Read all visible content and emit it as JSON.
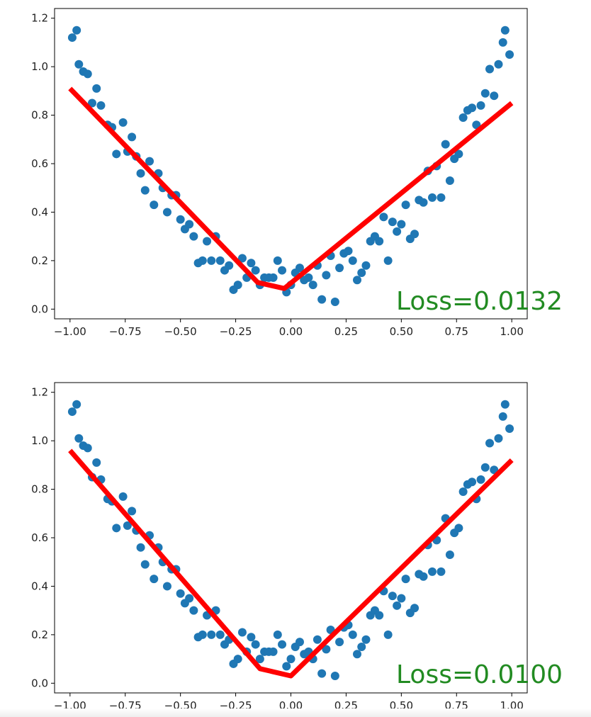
{
  "colors": {
    "points": "#1f77b4",
    "fit_line": "#ff0000",
    "loss_text": "#228b22",
    "axes": "#000000"
  },
  "chart_data": [
    {
      "type": "scatter",
      "xlim": [
        -1.07,
        1.07
      ],
      "ylim": [
        -0.04,
        1.24
      ],
      "xticks": [
        -1.0,
        -0.75,
        -0.5,
        -0.25,
        0.0,
        0.25,
        0.5,
        0.75,
        1.0
      ],
      "xtick_labels": [
        "−1.00",
        "−0.75",
        "−0.50",
        "−0.25",
        "0.00",
        "0.25",
        "0.50",
        "0.75",
        "1.00"
      ],
      "yticks": [
        0.0,
        0.2,
        0.4,
        0.6,
        0.8,
        1.0,
        1.2
      ],
      "ytick_labels": [
        "0.0",
        "0.2",
        "0.4",
        "0.6",
        "0.8",
        "1.0",
        "1.2"
      ],
      "grid": false,
      "annotation": "Loss=0.0132",
      "points": [
        [
          -0.99,
          1.12
        ],
        [
          -0.97,
          1.15
        ],
        [
          -0.96,
          1.01
        ],
        [
          -0.94,
          0.98
        ],
        [
          -0.92,
          0.97
        ],
        [
          -0.9,
          0.85
        ],
        [
          -0.88,
          0.91
        ],
        [
          -0.86,
          0.84
        ],
        [
          -0.83,
          0.76
        ],
        [
          -0.81,
          0.75
        ],
        [
          -0.79,
          0.64
        ],
        [
          -0.76,
          0.77
        ],
        [
          -0.74,
          0.65
        ],
        [
          -0.72,
          0.71
        ],
        [
          -0.7,
          0.63
        ],
        [
          -0.68,
          0.56
        ],
        [
          -0.66,
          0.49
        ],
        [
          -0.64,
          0.61
        ],
        [
          -0.62,
          0.43
        ],
        [
          -0.6,
          0.56
        ],
        [
          -0.58,
          0.5
        ],
        [
          -0.56,
          0.4
        ],
        [
          -0.54,
          0.47
        ],
        [
          -0.52,
          0.47
        ],
        [
          -0.5,
          0.37
        ],
        [
          -0.48,
          0.33
        ],
        [
          -0.46,
          0.35
        ],
        [
          -0.44,
          0.3
        ],
        [
          -0.42,
          0.19
        ],
        [
          -0.4,
          0.2
        ],
        [
          -0.38,
          0.28
        ],
        [
          -0.36,
          0.2
        ],
        [
          -0.34,
          0.3
        ],
        [
          -0.32,
          0.2
        ],
        [
          -0.3,
          0.16
        ],
        [
          -0.28,
          0.18
        ],
        [
          -0.26,
          0.08
        ],
        [
          -0.24,
          0.1
        ],
        [
          -0.22,
          0.21
        ],
        [
          -0.2,
          0.13
        ],
        [
          -0.18,
          0.19
        ],
        [
          -0.16,
          0.16
        ],
        [
          -0.14,
          0.1
        ],
        [
          -0.12,
          0.13
        ],
        [
          -0.1,
          0.13
        ],
        [
          -0.08,
          0.13
        ],
        [
          -0.06,
          0.2
        ],
        [
          -0.04,
          0.16
        ],
        [
          -0.02,
          0.07
        ],
        [
          0.0,
          0.1
        ],
        [
          0.02,
          0.15
        ],
        [
          0.04,
          0.17
        ],
        [
          0.06,
          0.12
        ],
        [
          0.08,
          0.13
        ],
        [
          0.1,
          0.1
        ],
        [
          0.12,
          0.18
        ],
        [
          0.14,
          0.04
        ],
        [
          0.16,
          0.14
        ],
        [
          0.18,
          0.22
        ],
        [
          0.2,
          0.03
        ],
        [
          0.22,
          0.17
        ],
        [
          0.24,
          0.23
        ],
        [
          0.26,
          0.24
        ],
        [
          0.28,
          0.2
        ],
        [
          0.3,
          0.12
        ],
        [
          0.32,
          0.15
        ],
        [
          0.34,
          0.18
        ],
        [
          0.36,
          0.28
        ],
        [
          0.38,
          0.3
        ],
        [
          0.4,
          0.28
        ],
        [
          0.42,
          0.38
        ],
        [
          0.44,
          0.2
        ],
        [
          0.46,
          0.36
        ],
        [
          0.48,
          0.32
        ],
        [
          0.5,
          0.35
        ],
        [
          0.52,
          0.43
        ],
        [
          0.54,
          0.29
        ],
        [
          0.56,
          0.31
        ],
        [
          0.58,
          0.45
        ],
        [
          0.6,
          0.44
        ],
        [
          0.62,
          0.57
        ],
        [
          0.64,
          0.46
        ],
        [
          0.66,
          0.59
        ],
        [
          0.68,
          0.46
        ],
        [
          0.7,
          0.68
        ],
        [
          0.72,
          0.53
        ],
        [
          0.74,
          0.62
        ],
        [
          0.76,
          0.64
        ],
        [
          0.78,
          0.79
        ],
        [
          0.8,
          0.82
        ],
        [
          0.82,
          0.83
        ],
        [
          0.84,
          0.76
        ],
        [
          0.86,
          0.84
        ],
        [
          0.88,
          0.89
        ],
        [
          0.9,
          0.99
        ],
        [
          0.92,
          0.88
        ],
        [
          0.94,
          1.01
        ],
        [
          0.96,
          1.1
        ],
        [
          0.97,
          1.15
        ],
        [
          0.99,
          1.05
        ]
      ],
      "fit_line": [
        [
          -1.0,
          0.91
        ],
        [
          -0.15,
          0.11
        ],
        [
          -0.03,
          0.085
        ],
        [
          1.0,
          0.85
        ]
      ]
    },
    {
      "type": "scatter",
      "xlim": [
        -1.07,
        1.07
      ],
      "ylim": [
        -0.04,
        1.24
      ],
      "xticks": [
        -1.0,
        -0.75,
        -0.5,
        -0.25,
        0.0,
        0.25,
        0.5,
        0.75,
        1.0
      ],
      "xtick_labels": [
        "−1.00",
        "−0.75",
        "−0.50",
        "−0.25",
        "0.00",
        "0.25",
        "0.50",
        "0.75",
        "1.00"
      ],
      "yticks": [
        0.0,
        0.2,
        0.4,
        0.6,
        0.8,
        1.0,
        1.2
      ],
      "ytick_labels": [
        "0.0",
        "0.2",
        "0.4",
        "0.6",
        "0.8",
        "1.0",
        "1.2"
      ],
      "grid": false,
      "annotation": "Loss=0.0100",
      "points": [
        [
          -0.99,
          1.12
        ],
        [
          -0.97,
          1.15
        ],
        [
          -0.96,
          1.01
        ],
        [
          -0.94,
          0.98
        ],
        [
          -0.92,
          0.97
        ],
        [
          -0.9,
          0.85
        ],
        [
          -0.88,
          0.91
        ],
        [
          -0.86,
          0.84
        ],
        [
          -0.83,
          0.76
        ],
        [
          -0.81,
          0.75
        ],
        [
          -0.79,
          0.64
        ],
        [
          -0.76,
          0.77
        ],
        [
          -0.74,
          0.65
        ],
        [
          -0.72,
          0.71
        ],
        [
          -0.7,
          0.63
        ],
        [
          -0.68,
          0.56
        ],
        [
          -0.66,
          0.49
        ],
        [
          -0.64,
          0.61
        ],
        [
          -0.62,
          0.43
        ],
        [
          -0.6,
          0.56
        ],
        [
          -0.58,
          0.5
        ],
        [
          -0.56,
          0.4
        ],
        [
          -0.54,
          0.47
        ],
        [
          -0.52,
          0.47
        ],
        [
          -0.5,
          0.37
        ],
        [
          -0.48,
          0.33
        ],
        [
          -0.46,
          0.35
        ],
        [
          -0.44,
          0.3
        ],
        [
          -0.42,
          0.19
        ],
        [
          -0.4,
          0.2
        ],
        [
          -0.38,
          0.28
        ],
        [
          -0.36,
          0.2
        ],
        [
          -0.34,
          0.3
        ],
        [
          -0.32,
          0.2
        ],
        [
          -0.3,
          0.16
        ],
        [
          -0.28,
          0.18
        ],
        [
          -0.26,
          0.08
        ],
        [
          -0.24,
          0.1
        ],
        [
          -0.22,
          0.21
        ],
        [
          -0.2,
          0.13
        ],
        [
          -0.18,
          0.19
        ],
        [
          -0.16,
          0.16
        ],
        [
          -0.14,
          0.1
        ],
        [
          -0.12,
          0.13
        ],
        [
          -0.1,
          0.13
        ],
        [
          -0.08,
          0.13
        ],
        [
          -0.06,
          0.2
        ],
        [
          -0.04,
          0.16
        ],
        [
          -0.02,
          0.07
        ],
        [
          0.0,
          0.1
        ],
        [
          0.02,
          0.15
        ],
        [
          0.04,
          0.17
        ],
        [
          0.06,
          0.12
        ],
        [
          0.08,
          0.13
        ],
        [
          0.1,
          0.1
        ],
        [
          0.12,
          0.18
        ],
        [
          0.14,
          0.04
        ],
        [
          0.16,
          0.14
        ],
        [
          0.18,
          0.22
        ],
        [
          0.2,
          0.03
        ],
        [
          0.22,
          0.17
        ],
        [
          0.24,
          0.23
        ],
        [
          0.26,
          0.24
        ],
        [
          0.28,
          0.2
        ],
        [
          0.3,
          0.12
        ],
        [
          0.32,
          0.15
        ],
        [
          0.34,
          0.18
        ],
        [
          0.36,
          0.28
        ],
        [
          0.38,
          0.3
        ],
        [
          0.4,
          0.28
        ],
        [
          0.42,
          0.38
        ],
        [
          0.44,
          0.2
        ],
        [
          0.46,
          0.36
        ],
        [
          0.48,
          0.32
        ],
        [
          0.5,
          0.35
        ],
        [
          0.52,
          0.43
        ],
        [
          0.54,
          0.29
        ],
        [
          0.56,
          0.31
        ],
        [
          0.58,
          0.45
        ],
        [
          0.6,
          0.44
        ],
        [
          0.62,
          0.57
        ],
        [
          0.64,
          0.46
        ],
        [
          0.66,
          0.59
        ],
        [
          0.68,
          0.46
        ],
        [
          0.7,
          0.68
        ],
        [
          0.72,
          0.53
        ],
        [
          0.74,
          0.62
        ],
        [
          0.76,
          0.64
        ],
        [
          0.78,
          0.79
        ],
        [
          0.8,
          0.82
        ],
        [
          0.82,
          0.83
        ],
        [
          0.84,
          0.76
        ],
        [
          0.86,
          0.84
        ],
        [
          0.88,
          0.89
        ],
        [
          0.9,
          0.99
        ],
        [
          0.92,
          0.88
        ],
        [
          0.94,
          1.01
        ],
        [
          0.96,
          1.1
        ],
        [
          0.97,
          1.15
        ],
        [
          0.99,
          1.05
        ]
      ],
      "fit_line": [
        [
          -1.0,
          0.96
        ],
        [
          -0.14,
          0.06
        ],
        [
          0.0,
          0.03
        ],
        [
          1.0,
          0.92
        ]
      ]
    }
  ]
}
